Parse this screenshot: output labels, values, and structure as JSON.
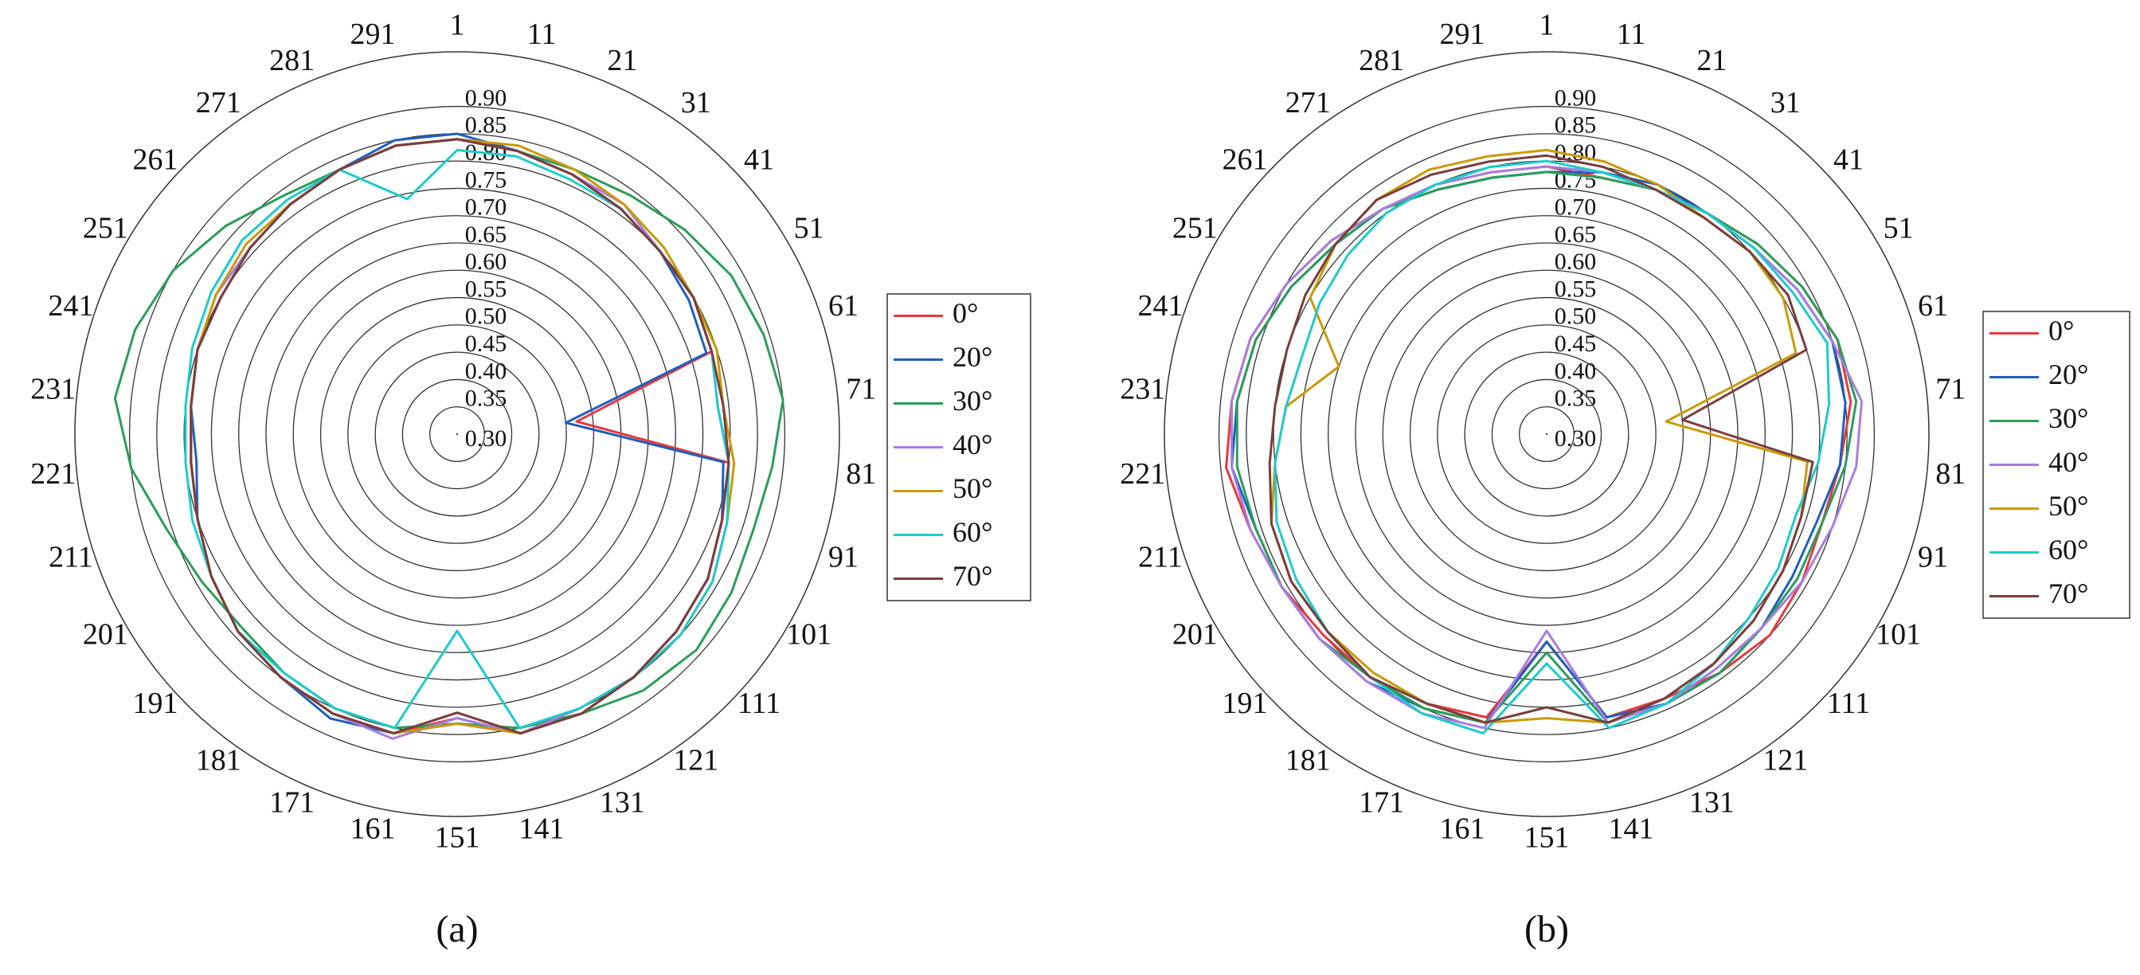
{
  "chart_data": [
    {
      "type": "polar",
      "caption": "(a)",
      "x": [
        1,
        11,
        21,
        31,
        41,
        51,
        61,
        71,
        81,
        91,
        101,
        111,
        121,
        131,
        141,
        151,
        161,
        171,
        181,
        191,
        201,
        211,
        221,
        231,
        241,
        251,
        261,
        271,
        281,
        291
      ],
      "xticks": [
        1,
        11,
        21,
        31,
        41,
        51,
        61,
        71,
        81,
        91,
        101,
        111,
        121,
        131,
        141,
        151,
        161,
        171,
        181,
        191,
        201,
        211,
        221,
        231,
        241,
        251,
        261,
        271,
        281,
        291
      ],
      "xlim": [
        1,
        301
      ],
      "ylim": [
        0.3,
        1.0
      ],
      "yticks": [
        {
          "value": 0.3,
          "label": "0.30"
        },
        0.35,
        {
          "value": 0.4,
          "label": "0.40"
        },
        0.45,
        {
          "value": 0.5,
          "label": "0.50"
        },
        0.55,
        {
          "value": 0.6,
          "label": "0.60"
        },
        0.65,
        {
          "value": 0.7,
          "label": "0.70"
        },
        0.75,
        {
          "value": 0.8,
          "label": "0.80"
        },
        0.85,
        {
          "value": 0.9,
          "label": "0.90"
        }
      ],
      "series": [
        {
          "name": "0°",
          "color": "#e8383d",
          "values": [
            0.84,
            0.83,
            0.82,
            0.81,
            0.8,
            0.8,
            0.79,
            0.52,
            0.8,
            0.81,
            0.83,
            0.84,
            0.85,
            0.86,
            0.86,
            0.82,
            0.86,
            0.86,
            0.85,
            0.84,
            0.82,
            0.8,
            0.79,
            0.79,
            0.8,
            0.8,
            0.81,
            0.82,
            0.83,
            0.84
          ]
        },
        {
          "name": "20°",
          "color": "#1f5fbf",
          "values": [
            0.85,
            0.83,
            0.82,
            0.81,
            0.8,
            0.79,
            0.78,
            0.5,
            0.79,
            0.81,
            0.83,
            0.84,
            0.85,
            0.86,
            0.86,
            0.83,
            0.86,
            0.87,
            0.85,
            0.84,
            0.82,
            0.8,
            0.78,
            0.79,
            0.8,
            0.8,
            0.81,
            0.82,
            0.83,
            0.85
          ]
        },
        {
          "name": "30°",
          "color": "#2a9d5c",
          "values": [
            0.84,
            0.83,
            0.83,
            0.84,
            0.86,
            0.88,
            0.89,
            0.9,
            0.88,
            0.87,
            0.88,
            0.89,
            0.88,
            0.86,
            0.85,
            0.83,
            0.85,
            0.85,
            0.84,
            0.83,
            0.84,
            0.86,
            0.9,
            0.93,
            0.92,
            0.9,
            0.87,
            0.84,
            0.83,
            0.84
          ]
        },
        {
          "name": "40°",
          "color": "#a77de0",
          "values": [
            0.84,
            0.83,
            0.82,
            0.82,
            0.8,
            0.8,
            0.79,
            0.78,
            0.8,
            0.81,
            0.83,
            0.84,
            0.85,
            0.85,
            0.86,
            0.82,
            0.87,
            0.86,
            0.85,
            0.84,
            0.82,
            0.8,
            0.79,
            0.79,
            0.8,
            0.81,
            0.81,
            0.82,
            0.83,
            0.84
          ]
        },
        {
          "name": "50°",
          "color": "#c99a06",
          "values": [
            0.84,
            0.84,
            0.83,
            0.82,
            0.81,
            0.8,
            0.8,
            0.79,
            0.81,
            0.82,
            0.84,
            0.85,
            0.85,
            0.86,
            0.86,
            0.83,
            0.86,
            0.86,
            0.85,
            0.84,
            0.82,
            0.8,
            0.79,
            0.79,
            0.8,
            0.81,
            0.82,
            0.82,
            0.83,
            0.84
          ]
        },
        {
          "name": "60°",
          "color": "#1ecbcb",
          "values": [
            0.82,
            0.82,
            0.81,
            0.81,
            0.8,
            0.8,
            0.79,
            0.78,
            0.8,
            0.82,
            0.84,
            0.85,
            0.85,
            0.85,
            0.85,
            0.66,
            0.85,
            0.85,
            0.84,
            0.84,
            0.82,
            0.81,
            0.8,
            0.8,
            0.81,
            0.82,
            0.83,
            0.83,
            0.83,
            0.74
          ]
        },
        {
          "name": "70°",
          "color": "#7a3d3d",
          "values": [
            0.84,
            0.83,
            0.82,
            0.81,
            0.8,
            0.8,
            0.79,
            0.79,
            0.8,
            0.81,
            0.83,
            0.84,
            0.85,
            0.86,
            0.86,
            0.81,
            0.86,
            0.86,
            0.85,
            0.84,
            0.82,
            0.8,
            0.79,
            0.79,
            0.8,
            0.8,
            0.81,
            0.82,
            0.83,
            0.84
          ]
        }
      ]
    },
    {
      "type": "polar",
      "caption": "(b)",
      "x": [
        1,
        11,
        21,
        31,
        41,
        51,
        61,
        71,
        81,
        91,
        101,
        111,
        121,
        131,
        141,
        151,
        161,
        171,
        181,
        191,
        201,
        211,
        221,
        231,
        241,
        251,
        261,
        271,
        281,
        291
      ],
      "xticks": [
        1,
        11,
        21,
        31,
        41,
        51,
        61,
        71,
        81,
        91,
        101,
        111,
        121,
        131,
        141,
        151,
        161,
        171,
        181,
        191,
        201,
        211,
        221,
        231,
        241,
        251,
        261,
        271,
        281,
        291
      ],
      "xlim": [
        1,
        301
      ],
      "ylim": [
        0.3,
        1.0
      ],
      "yticks": [
        {
          "value": 0.3,
          "label": "0.30"
        },
        0.35,
        {
          "value": 0.4,
          "label": "0.40"
        },
        0.45,
        {
          "value": 0.5,
          "label": "0.50"
        },
        0.55,
        {
          "value": 0.6,
          "label": "0.60"
        },
        0.65,
        {
          "value": 0.7,
          "label": "0.70"
        },
        0.75,
        {
          "value": 0.8,
          "label": "0.80"
        },
        0.85,
        {
          "value": 0.9,
          "label": "0.90"
        }
      ],
      "series": [
        {
          "name": "0°",
          "color": "#e8383d",
          "values": [
            0.79,
            0.78,
            0.79,
            0.8,
            0.82,
            0.84,
            0.86,
            0.86,
            0.84,
            0.83,
            0.84,
            0.85,
            0.84,
            0.83,
            0.83,
            0.68,
            0.83,
            0.84,
            0.85,
            0.85,
            0.86,
            0.87,
            0.89,
            0.88,
            0.87,
            0.85,
            0.83,
            0.81,
            0.8,
            0.79
          ]
        },
        {
          "name": "20°",
          "color": "#1f5fbf",
          "values": [
            0.78,
            0.79,
            0.8,
            0.8,
            0.81,
            0.83,
            0.85,
            0.85,
            0.84,
            0.82,
            0.82,
            0.83,
            0.84,
            0.84,
            0.83,
            0.68,
            0.84,
            0.85,
            0.86,
            0.86,
            0.86,
            0.86,
            0.88,
            0.87,
            0.86,
            0.84,
            0.82,
            0.81,
            0.79,
            0.78
          ]
        },
        {
          "name": "30°",
          "color": "#2a9d5c",
          "values": [
            0.78,
            0.78,
            0.79,
            0.8,
            0.82,
            0.84,
            0.86,
            0.87,
            0.85,
            0.83,
            0.83,
            0.83,
            0.84,
            0.84,
            0.84,
            0.7,
            0.84,
            0.85,
            0.85,
            0.86,
            0.86,
            0.86,
            0.87,
            0.87,
            0.86,
            0.84,
            0.82,
            0.81,
            0.79,
            0.78
          ]
        },
        {
          "name": "40°",
          "color": "#a77de0",
          "values": [
            0.79,
            0.79,
            0.79,
            0.8,
            0.81,
            0.83,
            0.85,
            0.88,
            0.87,
            0.85,
            0.84,
            0.83,
            0.83,
            0.84,
            0.84,
            0.66,
            0.85,
            0.86,
            0.86,
            0.86,
            0.86,
            0.87,
            0.88,
            0.88,
            0.87,
            0.85,
            0.83,
            0.81,
            0.8,
            0.79
          ]
        },
        {
          "name": "50°",
          "color": "#c99a06",
          "values": [
            0.82,
            0.81,
            0.8,
            0.79,
            0.8,
            0.8,
            0.78,
            0.52,
            0.78,
            0.79,
            0.8,
            0.81,
            0.82,
            0.83,
            0.84,
            0.82,
            0.84,
            0.84,
            0.84,
            0.84,
            0.84,
            0.83,
            0.8,
            0.78,
            0.7,
            0.8,
            0.82,
            0.83,
            0.83,
            0.82
          ]
        },
        {
          "name": "60°",
          "color": "#1ecbcb",
          "values": [
            0.8,
            0.79,
            0.79,
            0.8,
            0.81,
            0.82,
            0.84,
            0.82,
            0.8,
            0.78,
            0.79,
            0.8,
            0.82,
            0.84,
            0.85,
            0.72,
            0.86,
            0.86,
            0.85,
            0.84,
            0.83,
            0.82,
            0.8,
            0.78,
            0.77,
            0.78,
            0.79,
            0.8,
            0.8,
            0.8
          ]
        },
        {
          "name": "70°",
          "color": "#7a3d3d",
          "values": [
            0.81,
            0.8,
            0.79,
            0.79,
            0.8,
            0.81,
            0.8,
            0.55,
            0.79,
            0.79,
            0.8,
            0.81,
            0.82,
            0.83,
            0.84,
            0.8,
            0.84,
            0.84,
            0.85,
            0.84,
            0.84,
            0.83,
            0.81,
            0.8,
            0.8,
            0.81,
            0.82,
            0.83,
            0.82,
            0.81
          ]
        }
      ]
    }
  ]
}
